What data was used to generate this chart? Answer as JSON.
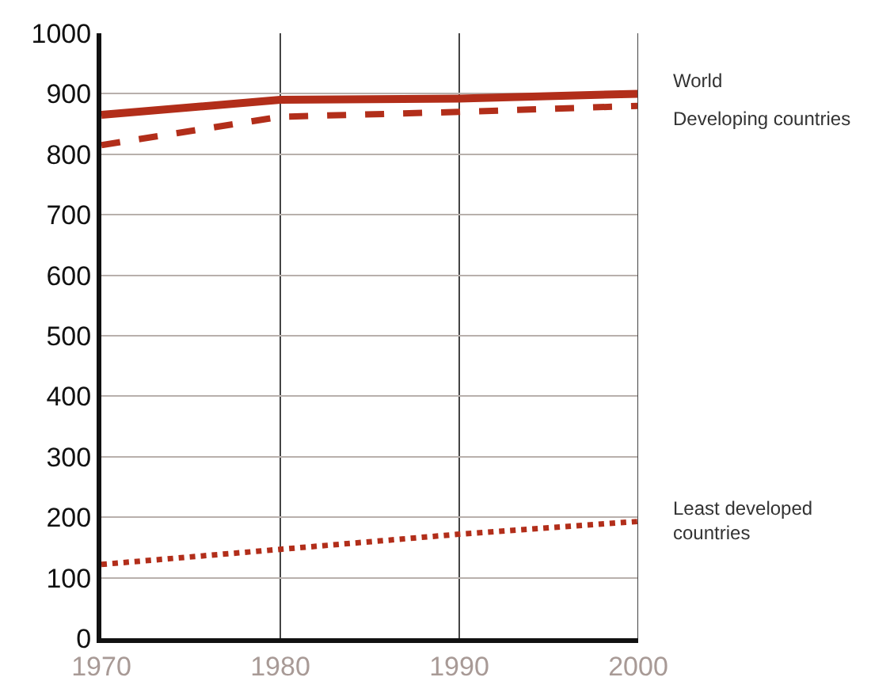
{
  "chart_data": {
    "type": "line",
    "x": [
      1970,
      1980,
      1990,
      2000
    ],
    "series": [
      {
        "name": "World",
        "color": "#b22e1a",
        "line_style": "solid",
        "values": [
          865,
          890,
          892,
          900
        ]
      },
      {
        "name": "Developing countries",
        "color": "#b22e1a",
        "line_style": "dashed",
        "values": [
          815,
          862,
          870,
          880
        ]
      },
      {
        "name": "Least developed countries",
        "color": "#b22e1a",
        "line_style": "dotted",
        "values": [
          122,
          147,
          172,
          193
        ]
      }
    ],
    "xlim": [
      1970,
      2000
    ],
    "xticks": [
      1970,
      1980,
      1990,
      2000
    ],
    "ylim": [
      0,
      1000
    ],
    "yticks": [
      0,
      100,
      200,
      300,
      400,
      500,
      600,
      700,
      800,
      900,
      1000
    ],
    "grid": true,
    "legend": false,
    "marker": "none"
  }
}
